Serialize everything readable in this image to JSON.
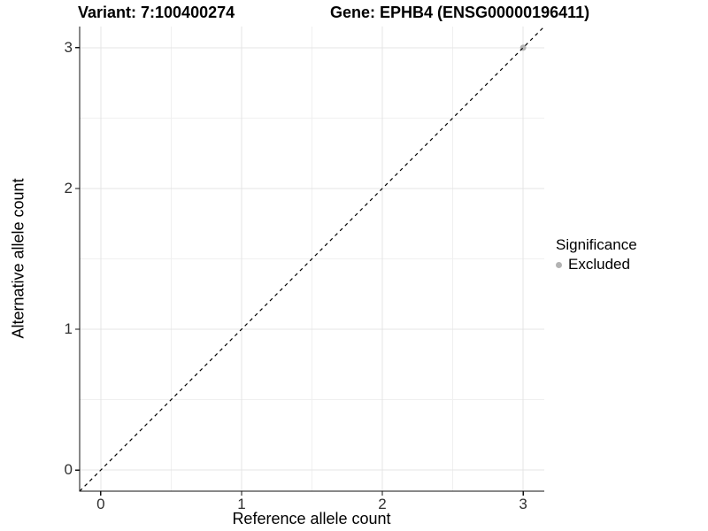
{
  "header": {
    "variant_title": "Variant: 7:100400274",
    "gene_title": "Gene: EPHB4 (ENSG00000196411)"
  },
  "axes": {
    "x_label": "Reference allele count",
    "y_label": "Alternative allele count"
  },
  "legend": {
    "title": "Significance",
    "items": [
      {
        "label": "Excluded",
        "color": "#b3b3b3"
      }
    ]
  },
  "chart_data": {
    "type": "scatter",
    "title": "Variant: 7:100400274 / Gene: EPHB4 (ENSG00000196411)",
    "xlabel": "Reference allele count",
    "ylabel": "Alternative allele count",
    "xlim": [
      -0.15,
      3.15
    ],
    "ylim": [
      -0.15,
      3.15
    ],
    "xticks": [
      0,
      1,
      2,
      3
    ],
    "yticks": [
      0,
      1,
      2,
      3
    ],
    "x_minor": [
      0.5,
      1.5,
      2.5
    ],
    "y_minor": [
      0.5,
      1.5,
      2.5
    ],
    "grid": true,
    "legend_position": "right",
    "series": [
      {
        "name": "Excluded",
        "color": "#b3b3b3",
        "points": [
          {
            "x": 3,
            "y": 3
          }
        ]
      }
    ],
    "reference_line": {
      "type": "identity",
      "slope": 1,
      "intercept": 0,
      "style": "dashed",
      "color": "#000000"
    },
    "colors": {
      "grid_major": "#e4e4e4",
      "grid_minor": "#f0f0f0",
      "axis_line": "#111111",
      "tick": "#111111",
      "panel_bg": "#ffffff"
    }
  }
}
